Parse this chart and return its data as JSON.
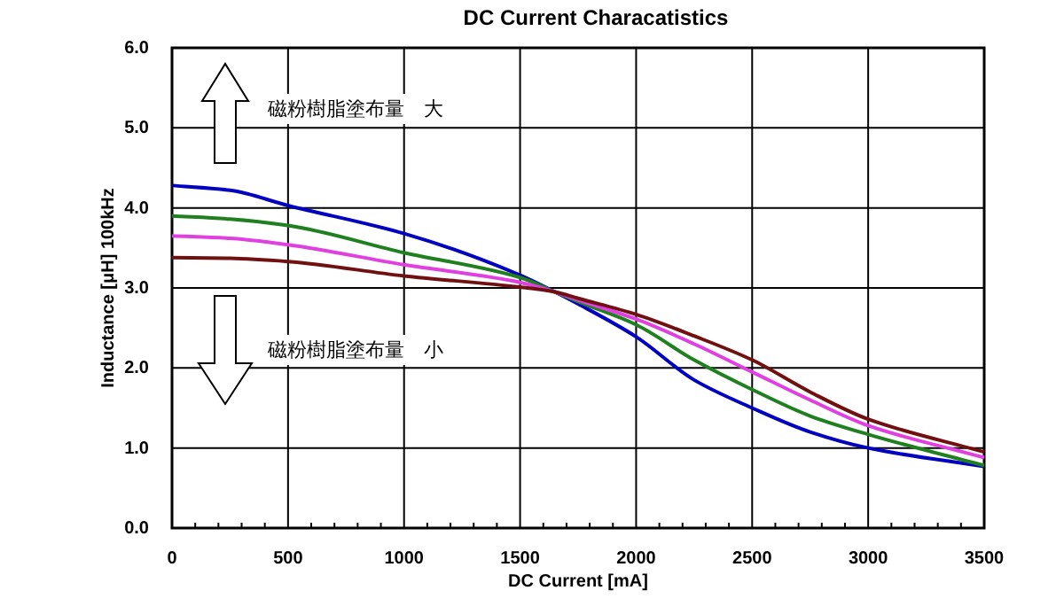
{
  "chart_data": {
    "type": "line",
    "title": "DC Current Characatistics",
    "xlabel": "DC Current [mA]",
    "ylabel": "Inductance [μH] 100kHz",
    "annotations": [
      "磁粉樹脂塗布量　大",
      "磁粉樹脂塗布量　小"
    ],
    "x": [
      0,
      250,
      500,
      1000,
      1500,
      1650,
      1750,
      2000,
      2250,
      2500,
      2750,
      3000,
      3500
    ],
    "series": [
      {
        "color": "#0000c0",
        "values": [
          4.28,
          4.22,
          4.03,
          3.68,
          3.16,
          2.95,
          2.8,
          2.39,
          1.85,
          1.5,
          1.2,
          1.0,
          0.77
        ]
      },
      {
        "color": "#208020",
        "values": [
          3.9,
          3.86,
          3.78,
          3.44,
          3.13,
          2.95,
          2.83,
          2.54,
          2.1,
          1.73,
          1.4,
          1.17,
          0.78
        ]
      },
      {
        "color": "#e040e0",
        "values": [
          3.65,
          3.62,
          3.54,
          3.29,
          3.07,
          2.95,
          2.85,
          2.61,
          2.3,
          1.95,
          1.6,
          1.28,
          0.88
        ]
      },
      {
        "color": "#701010",
        "values": [
          3.38,
          3.37,
          3.33,
          3.15,
          3.01,
          2.95,
          2.87,
          2.67,
          2.4,
          2.1,
          1.7,
          1.36,
          0.95
        ]
      }
    ],
    "xlim": [
      0,
      3500
    ],
    "xticks": [
      0,
      500,
      1000,
      1500,
      2000,
      2500,
      3000,
      3500
    ],
    "ylim": [
      0,
      6
    ],
    "yticks": [
      {
        "value": 0,
        "label": "0.0"
      },
      {
        "value": 1,
        "label": "1.0"
      },
      {
        "value": 2,
        "label": "2.0"
      },
      {
        "value": 3,
        "label": "3.0"
      },
      {
        "value": 4,
        "label": "4.0"
      },
      {
        "value": 5,
        "label": "5.0"
      },
      {
        "value": 6,
        "label": "6.0"
      }
    ],
    "grid": true,
    "marker": "none",
    "line_style": "solid"
  }
}
